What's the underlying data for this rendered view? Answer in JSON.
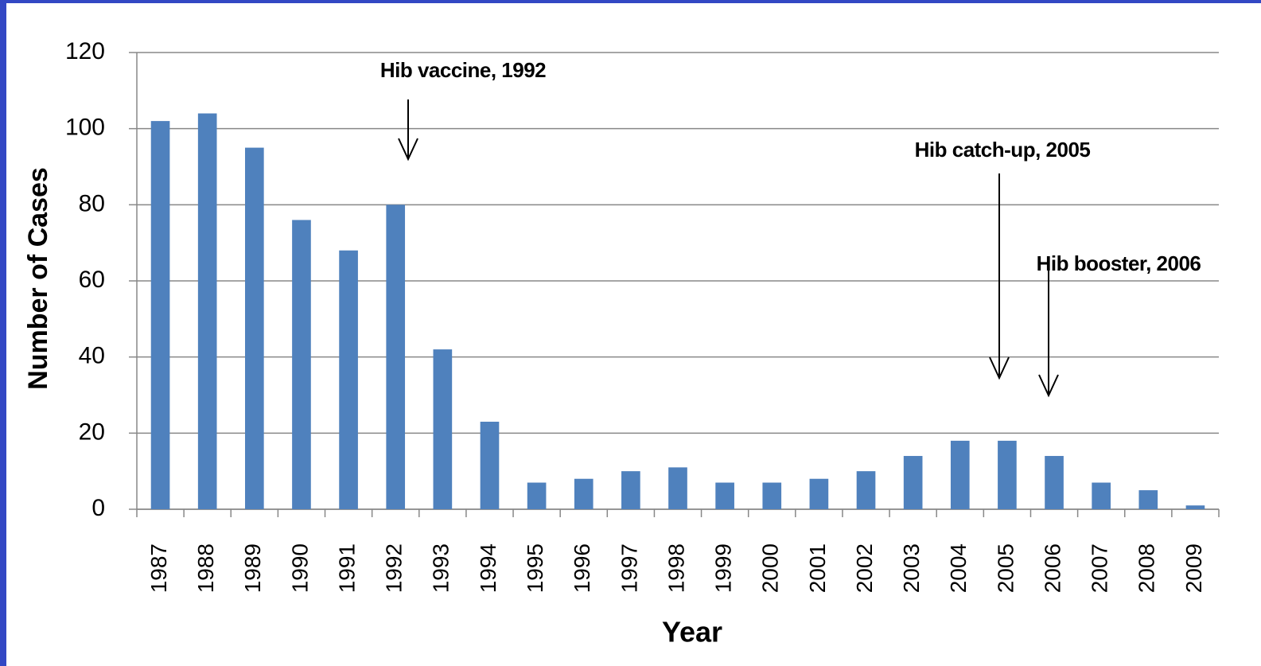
{
  "chart_data": {
    "type": "bar",
    "xlabel": "Year",
    "ylabel": "Number of Cases",
    "categories": [
      "1987",
      "1988",
      "1989",
      "1990",
      "1991",
      "1992",
      "1993",
      "1994",
      "1995",
      "1996",
      "1997",
      "1998",
      "1999",
      "2000",
      "2001",
      "2002",
      "2003",
      "2004",
      "2005",
      "2006",
      "2007",
      "2008",
      "2009"
    ],
    "values": [
      102,
      104,
      95,
      76,
      68,
      80,
      42,
      23,
      7,
      8,
      10,
      11,
      7,
      7,
      8,
      10,
      14,
      18,
      18,
      14,
      7,
      5,
      1
    ],
    "color": "#4f81bd",
    "ylim": [
      0,
      120
    ],
    "yticks": [
      0,
      20,
      40,
      60,
      80,
      100,
      120
    ],
    "grid": true,
    "annotations": [
      "Hib vaccine, 1992",
      "Hib catch-up, 2005",
      "Hib booster, 2006"
    ]
  }
}
